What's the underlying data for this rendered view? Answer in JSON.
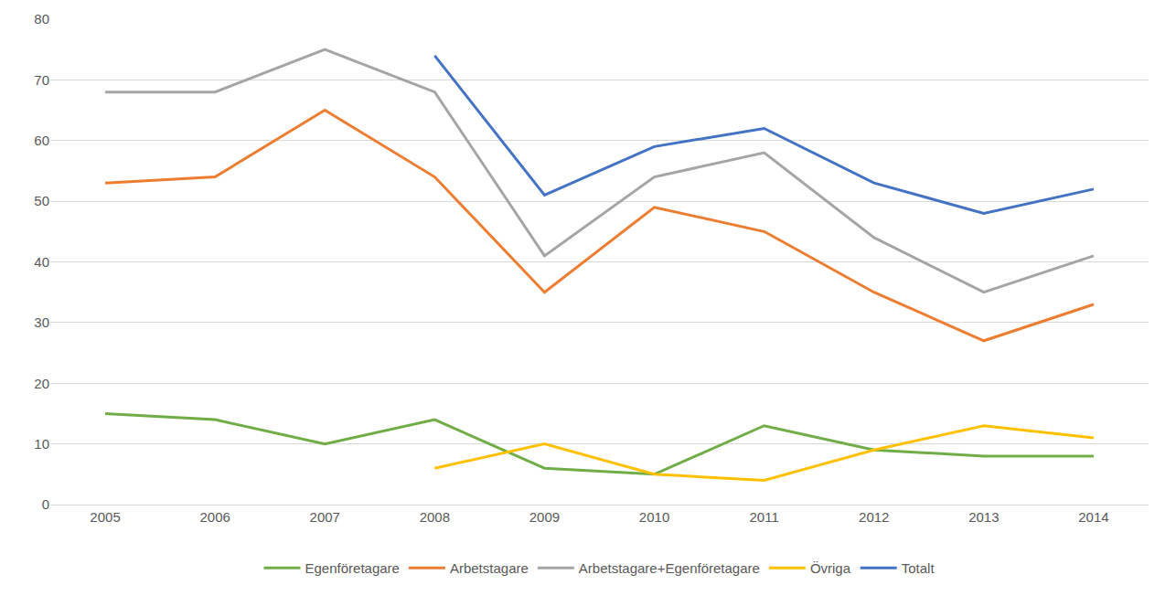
{
  "chart_data": {
    "type": "line",
    "categories": [
      "2005",
      "2006",
      "2007",
      "2008",
      "2009",
      "2010",
      "2011",
      "2012",
      "2013",
      "2014"
    ],
    "series": [
      {
        "name": "Egenföretagare",
        "color": "#70ad47",
        "values": [
          15,
          14,
          10,
          14,
          6,
          5,
          13,
          9,
          8,
          8
        ]
      },
      {
        "name": "Arbetstagare",
        "color": "#ed7d31",
        "values": [
          53,
          54,
          65,
          54,
          35,
          49,
          45,
          35,
          27,
          33
        ]
      },
      {
        "name": "Arbetstagare+Egenföretagare",
        "color": "#a5a5a5",
        "values": [
          68,
          68,
          75,
          68,
          41,
          54,
          58,
          44,
          35,
          41
        ]
      },
      {
        "name": "Övriga",
        "color": "#ffc000",
        "values": [
          null,
          null,
          null,
          6,
          10,
          5,
          4,
          9,
          13,
          11
        ]
      },
      {
        "name": "Totalt",
        "color": "#4472c4",
        "values": [
          null,
          null,
          null,
          74,
          51,
          59,
          62,
          53,
          48,
          52
        ]
      }
    ],
    "ylim": [
      0,
      80
    ],
    "yticks": [
      0,
      10,
      20,
      30,
      40,
      50,
      60,
      70,
      80
    ],
    "grid": true,
    "legend": "bottom",
    "line_style": "solid"
  }
}
